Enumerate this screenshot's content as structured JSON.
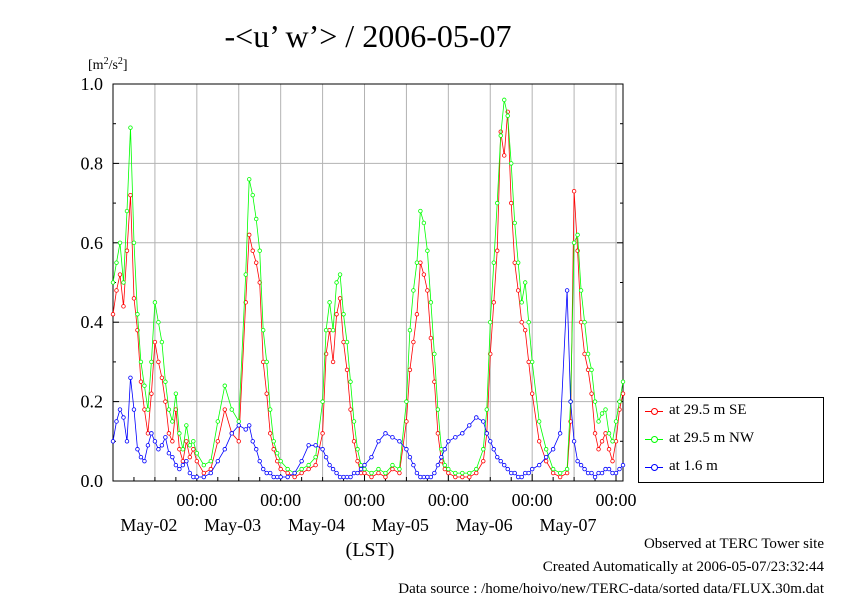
{
  "chart_data": {
    "type": "line",
    "title": "-<u’ w’> / 2006-05-07",
    "ylabel": "[m2/s2]",
    "ylabel_parts": {
      "a": "[m",
      "b": "2",
      "c": "/s",
      "d": "2",
      "e": "]"
    },
    "xlabel": "(LST)",
    "ylim": [
      0,
      1.0
    ],
    "yticks": [
      "0.0",
      "0.2",
      "0.4",
      "0.6",
      "0.8",
      "1.0"
    ],
    "xlim_hours": [
      0,
      146
    ],
    "xticks": [
      {
        "hour": 24,
        "time": "00:00",
        "date": "May-02"
      },
      {
        "hour": 48,
        "time": "00:00",
        "date": "May-03"
      },
      {
        "hour": 72,
        "time": "00:00",
        "date": "May-04"
      },
      {
        "hour": 96,
        "time": "00:00",
        "date": "May-05"
      },
      {
        "hour": 120,
        "time": "00:00",
        "date": "May-06"
      },
      {
        "hour": 144,
        "time": "00:00",
        "date": "May-07"
      }
    ],
    "series": [
      {
        "name": "at 29.5 m SE",
        "color": "#ff0000",
        "x": [
          0,
          1,
          2,
          3,
          4,
          5,
          6,
          7,
          8,
          9,
          10,
          11,
          12,
          13,
          14,
          15,
          16,
          17,
          18,
          19,
          20,
          21,
          22,
          23,
          24,
          26,
          28,
          30,
          32,
          34,
          36,
          38,
          39,
          40,
          41,
          42,
          43,
          44,
          45,
          46,
          47,
          48,
          50,
          52,
          54,
          56,
          58,
          60,
          61,
          62,
          63,
          64,
          65,
          66,
          67,
          68,
          69,
          70,
          71,
          72,
          74,
          76,
          78,
          80,
          82,
          84,
          85,
          86,
          87,
          88,
          89,
          90,
          91,
          92,
          93,
          94,
          95,
          96,
          98,
          100,
          102,
          104,
          106,
          107,
          108,
          109,
          110,
          111,
          112,
          113,
          114,
          115,
          116,
          117,
          118,
          119,
          120,
          122,
          124,
          126,
          128,
          130,
          131,
          132,
          133,
          134,
          135,
          136,
          137,
          138,
          139,
          140,
          141,
          142,
          143,
          144,
          145,
          146
        ],
        "y": [
          0.42,
          0.48,
          0.52,
          0.44,
          0.58,
          0.72,
          0.46,
          0.38,
          0.25,
          0.18,
          0.12,
          0.22,
          0.35,
          0.3,
          0.26,
          0.2,
          0.12,
          0.1,
          0.18,
          0.08,
          0.05,
          0.1,
          0.06,
          0.08,
          0.05,
          0.02,
          0.03,
          0.1,
          0.18,
          0.12,
          0.1,
          0.45,
          0.62,
          0.58,
          0.55,
          0.5,
          0.3,
          0.22,
          0.12,
          0.08,
          0.05,
          0.03,
          0.02,
          0.01,
          0.02,
          0.03,
          0.04,
          0.12,
          0.32,
          0.38,
          0.3,
          0.42,
          0.46,
          0.35,
          0.28,
          0.18,
          0.1,
          0.05,
          0.02,
          0.02,
          0.01,
          0.02,
          0.01,
          0.03,
          0.02,
          0.15,
          0.28,
          0.35,
          0.42,
          0.55,
          0.52,
          0.48,
          0.36,
          0.25,
          0.12,
          0.05,
          0.03,
          0.02,
          0.01,
          0.01,
          0.01,
          0.02,
          0.05,
          0.12,
          0.32,
          0.45,
          0.58,
          0.88,
          0.82,
          0.93,
          0.7,
          0.55,
          0.48,
          0.4,
          0.38,
          0.3,
          0.22,
          0.1,
          0.05,
          0.02,
          0.01,
          0.02,
          0.15,
          0.73,
          0.58,
          0.4,
          0.32,
          0.28,
          0.22,
          0.12,
          0.08,
          0.1,
          0.12,
          0.08,
          0.05,
          0.1,
          0.18,
          0.22
        ]
      },
      {
        "name": "at 29.5 m NW",
        "color": "#00ff00",
        "x": [
          0,
          1,
          2,
          3,
          4,
          5,
          6,
          7,
          8,
          9,
          10,
          11,
          12,
          13,
          14,
          15,
          16,
          17,
          18,
          19,
          20,
          21,
          22,
          23,
          24,
          26,
          28,
          30,
          32,
          34,
          36,
          38,
          39,
          40,
          41,
          42,
          43,
          44,
          45,
          46,
          47,
          48,
          50,
          52,
          54,
          56,
          58,
          60,
          61,
          62,
          63,
          64,
          65,
          66,
          67,
          68,
          69,
          70,
          71,
          72,
          74,
          76,
          78,
          80,
          82,
          84,
          85,
          86,
          87,
          88,
          89,
          90,
          91,
          92,
          93,
          94,
          95,
          96,
          98,
          100,
          102,
          104,
          106,
          107,
          108,
          109,
          110,
          111,
          112,
          113,
          114,
          115,
          116,
          117,
          118,
          119,
          120,
          122,
          124,
          126,
          128,
          130,
          131,
          132,
          133,
          134,
          135,
          136,
          137,
          138,
          139,
          140,
          141,
          142,
          143,
          144,
          145,
          146
        ],
        "y": [
          0.5,
          0.55,
          0.6,
          0.5,
          0.68,
          0.89,
          0.6,
          0.42,
          0.3,
          0.24,
          0.18,
          0.3,
          0.45,
          0.4,
          0.35,
          0.25,
          0.18,
          0.15,
          0.22,
          0.12,
          0.08,
          0.14,
          0.09,
          0.1,
          0.07,
          0.04,
          0.05,
          0.15,
          0.24,
          0.18,
          0.15,
          0.52,
          0.76,
          0.72,
          0.66,
          0.58,
          0.38,
          0.3,
          0.18,
          0.1,
          0.07,
          0.05,
          0.03,
          0.02,
          0.03,
          0.04,
          0.06,
          0.2,
          0.38,
          0.45,
          0.38,
          0.5,
          0.52,
          0.42,
          0.35,
          0.25,
          0.15,
          0.08,
          0.04,
          0.03,
          0.02,
          0.03,
          0.02,
          0.04,
          0.03,
          0.2,
          0.38,
          0.48,
          0.55,
          0.68,
          0.65,
          0.58,
          0.45,
          0.32,
          0.18,
          0.08,
          0.04,
          0.03,
          0.02,
          0.02,
          0.02,
          0.03,
          0.08,
          0.18,
          0.4,
          0.55,
          0.7,
          0.87,
          0.96,
          0.92,
          0.8,
          0.65,
          0.55,
          0.45,
          0.5,
          0.4,
          0.3,
          0.15,
          0.08,
          0.03,
          0.02,
          0.03,
          0.2,
          0.6,
          0.62,
          0.48,
          0.4,
          0.32,
          0.28,
          0.2,
          0.15,
          0.17,
          0.18,
          0.12,
          0.1,
          0.15,
          0.2,
          0.25
        ]
      },
      {
        "name": "at 1.6 m",
        "color": "#0000ff",
        "x": [
          0,
          1,
          2,
          3,
          4,
          5,
          6,
          7,
          8,
          9,
          10,
          11,
          12,
          13,
          14,
          15,
          16,
          17,
          18,
          19,
          20,
          21,
          22,
          23,
          24,
          26,
          28,
          30,
          32,
          34,
          36,
          38,
          39,
          40,
          41,
          42,
          43,
          44,
          45,
          46,
          47,
          48,
          50,
          52,
          54,
          56,
          58,
          60,
          61,
          62,
          63,
          64,
          65,
          66,
          67,
          68,
          69,
          70,
          71,
          72,
          74,
          76,
          78,
          80,
          82,
          84,
          85,
          86,
          87,
          88,
          89,
          90,
          91,
          92,
          93,
          94,
          95,
          96,
          98,
          100,
          102,
          104,
          106,
          107,
          108,
          109,
          110,
          111,
          112,
          113,
          114,
          115,
          116,
          117,
          118,
          119,
          120,
          122,
          124,
          126,
          128,
          130,
          131,
          132,
          133,
          134,
          135,
          136,
          137,
          138,
          139,
          140,
          141,
          142,
          143,
          144,
          145,
          146
        ],
        "y": [
          0.1,
          0.15,
          0.18,
          0.16,
          0.1,
          0.26,
          0.18,
          0.08,
          0.06,
          0.05,
          0.09,
          0.12,
          0.1,
          0.08,
          0.09,
          0.11,
          0.07,
          0.06,
          0.04,
          0.03,
          0.04,
          0.05,
          0.02,
          0.01,
          0.01,
          0.01,
          0.02,
          0.05,
          0.08,
          0.12,
          0.14,
          0.13,
          0.14,
          0.1,
          0.08,
          0.05,
          0.03,
          0.02,
          0.02,
          0.01,
          0.01,
          0.01,
          0.01,
          0.02,
          0.05,
          0.09,
          0.09,
          0.08,
          0.06,
          0.04,
          0.03,
          0.02,
          0.01,
          0.01,
          0.01,
          0.01,
          0.02,
          0.02,
          0.03,
          0.04,
          0.06,
          0.1,
          0.12,
          0.11,
          0.1,
          0.08,
          0.06,
          0.04,
          0.02,
          0.01,
          0.01,
          0.01,
          0.01,
          0.02,
          0.04,
          0.06,
          0.08,
          0.1,
          0.11,
          0.12,
          0.14,
          0.16,
          0.15,
          0.12,
          0.1,
          0.08,
          0.06,
          0.05,
          0.04,
          0.03,
          0.02,
          0.02,
          0.01,
          0.01,
          0.02,
          0.02,
          0.03,
          0.04,
          0.06,
          0.08,
          0.12,
          0.48,
          0.2,
          0.1,
          0.05,
          0.04,
          0.03,
          0.02,
          0.02,
          0.01,
          0.02,
          0.02,
          0.03,
          0.03,
          0.02,
          0.02,
          0.03,
          0.04
        ]
      }
    ],
    "legend_position": "right",
    "grid": true
  },
  "legend": {
    "items": [
      {
        "label": "at 29.5 m SE",
        "color": "#ff0000"
      },
      {
        "label": "at 29.5 m NW",
        "color": "#00ff00"
      },
      {
        "label": "at 1.6 m",
        "color": "#0000ff"
      }
    ]
  },
  "footer": {
    "line1": "Observed at TERC Tower site",
    "line2": "Created Automatically at 2006-05-07/23:32:44",
    "line3": "Data source : /home/hoivo/new/TERC-data/sorted  data/FLUX.30m.dat"
  }
}
